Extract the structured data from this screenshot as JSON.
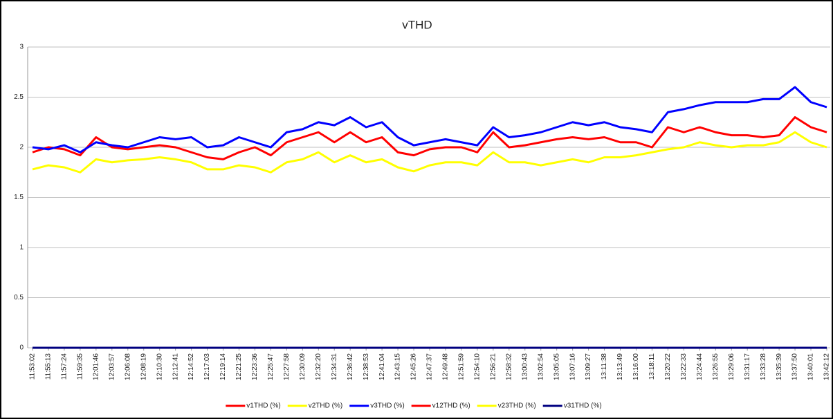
{
  "chart_data": {
    "type": "line",
    "title": "vTHD",
    "categories": [
      "11:53:02",
      "11:55:13",
      "11:57:24",
      "11:59:35",
      "12:01:46",
      "12:03:57",
      "12:06:08",
      "12:08:19",
      "12:10:30",
      "12:12:41",
      "12:14:52",
      "12:17:03",
      "12:19:14",
      "12:21:25",
      "12:23:36",
      "12:25:47",
      "12:27:58",
      "12:30:09",
      "12:32:20",
      "12:34:31",
      "12:36:42",
      "12:38:53",
      "12:41:04",
      "12:43:15",
      "12:45:26",
      "12:47:37",
      "12:49:48",
      "12:51:59",
      "12:54:10",
      "12:56:21",
      "12:58:32",
      "13:00:43",
      "13:02:54",
      "13:05:05",
      "13:07:16",
      "13:09:27",
      "13:11:38",
      "13:13:49",
      "13:16:00",
      "13:18:11",
      "13:20:22",
      "13:22:33",
      "13:24:44",
      "13:26:55",
      "13:29:06",
      "13:31:17",
      "13:33:28",
      "13:35:39",
      "13:37:50",
      "13:40:01",
      "13:42:12"
    ],
    "series": [
      {
        "name": "v1THD (%)",
        "color": "#ff0000",
        "values": [
          1.95,
          2.0,
          1.98,
          1.92,
          2.1,
          2.0,
          1.98,
          2.0,
          2.02,
          2.0,
          1.95,
          1.9,
          1.88,
          1.95,
          2.0,
          1.92,
          2.05,
          2.1,
          2.15,
          2.05,
          2.15,
          2.05,
          2.1,
          1.95,
          1.92,
          1.98,
          2.0,
          2.0,
          1.95,
          2.15,
          2.0,
          2.02,
          2.05,
          2.08,
          2.1,
          2.08,
          2.1,
          2.05,
          2.05,
          2.0,
          2.2,
          2.15,
          2.2,
          2.15,
          2.12,
          2.12,
          2.1,
          2.12,
          2.3,
          2.2,
          2.15
        ]
      },
      {
        "name": "v2THD (%)",
        "color": "#ffff00",
        "values": [
          1.78,
          1.82,
          1.8,
          1.75,
          1.88,
          1.85,
          1.87,
          1.88,
          1.9,
          1.88,
          1.85,
          1.78,
          1.78,
          1.82,
          1.8,
          1.75,
          1.85,
          1.88,
          1.95,
          1.85,
          1.92,
          1.85,
          1.88,
          1.8,
          1.76,
          1.82,
          1.85,
          1.85,
          1.82,
          1.95,
          1.85,
          1.85,
          1.82,
          1.85,
          1.88,
          1.85,
          1.9,
          1.9,
          1.92,
          1.95,
          1.98,
          2.0,
          2.05,
          2.02,
          2.0,
          2.02,
          2.02,
          2.05,
          2.15,
          2.05,
          2.0
        ]
      },
      {
        "name": "v3THD (%)",
        "color": "#0000ff",
        "values": [
          2.0,
          1.98,
          2.02,
          1.95,
          2.05,
          2.02,
          2.0,
          2.05,
          2.1,
          2.08,
          2.1,
          2.0,
          2.02,
          2.1,
          2.05,
          2.0,
          2.15,
          2.18,
          2.25,
          2.22,
          2.3,
          2.2,
          2.25,
          2.1,
          2.02,
          2.05,
          2.08,
          2.05,
          2.02,
          2.2,
          2.1,
          2.12,
          2.15,
          2.2,
          2.25,
          2.22,
          2.25,
          2.2,
          2.18,
          2.15,
          2.35,
          2.38,
          2.42,
          2.45,
          2.45,
          2.45,
          2.48,
          2.48,
          2.6,
          2.45,
          2.4
        ]
      },
      {
        "name": "v12THD (%)",
        "color": "#ff0000",
        "values": [
          0,
          0,
          0,
          0,
          0,
          0,
          0,
          0,
          0,
          0,
          0,
          0,
          0,
          0,
          0,
          0,
          0,
          0,
          0,
          0,
          0,
          0,
          0,
          0,
          0,
          0,
          0,
          0,
          0,
          0,
          0,
          0,
          0,
          0,
          0,
          0,
          0,
          0,
          0,
          0,
          0,
          0,
          0,
          0,
          0,
          0,
          0,
          0,
          0,
          0,
          0
        ]
      },
      {
        "name": "v23THD (%)",
        "color": "#ffff00",
        "values": [
          0,
          0,
          0,
          0,
          0,
          0,
          0,
          0,
          0,
          0,
          0,
          0,
          0,
          0,
          0,
          0,
          0,
          0,
          0,
          0,
          0,
          0,
          0,
          0,
          0,
          0,
          0,
          0,
          0,
          0,
          0,
          0,
          0,
          0,
          0,
          0,
          0,
          0,
          0,
          0,
          0,
          0,
          0,
          0,
          0,
          0,
          0,
          0,
          0,
          0,
          0
        ]
      },
      {
        "name": "v31THD (%)",
        "color": "#000080",
        "values": [
          0,
          0,
          0,
          0,
          0,
          0,
          0,
          0,
          0,
          0,
          0,
          0,
          0,
          0,
          0,
          0,
          0,
          0,
          0,
          0,
          0,
          0,
          0,
          0,
          0,
          0,
          0,
          0,
          0,
          0,
          0,
          0,
          0,
          0,
          0,
          0,
          0,
          0,
          0,
          0,
          0,
          0,
          0,
          0,
          0,
          0,
          0,
          0,
          0,
          0,
          0
        ]
      }
    ],
    "ylim": [
      0,
      3
    ],
    "yticks": [
      0,
      0.5,
      1,
      1.5,
      2,
      2.5,
      3
    ],
    "grid": true,
    "legend": "bottom"
  }
}
